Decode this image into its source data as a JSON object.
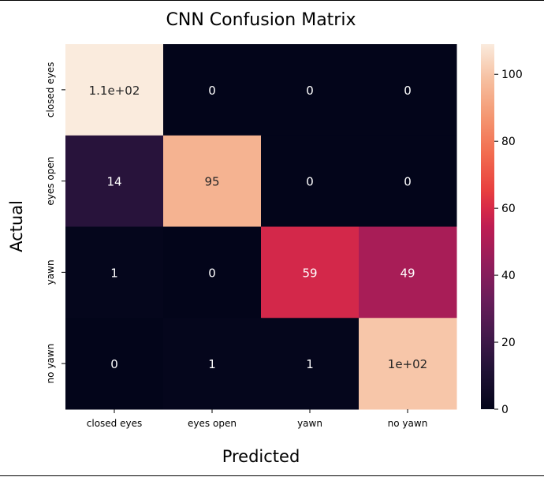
{
  "chart_data": {
    "type": "heatmap",
    "title": "CNN Confusion Matrix",
    "xlabel": "Predicted",
    "ylabel": "Actual",
    "x_categories": [
      "closed eyes",
      "eyes open",
      "yawn",
      "no yawn"
    ],
    "y_categories": [
      "closed eyes",
      "eyes open",
      "yawn",
      "no yawn"
    ],
    "values": [
      [
        109,
        0,
        0,
        0
      ],
      [
        14,
        95,
        0,
        0
      ],
      [
        1,
        0,
        59,
        49
      ],
      [
        0,
        1,
        1,
        100
      ]
    ],
    "annotations": [
      [
        "1.1e+02",
        "0",
        "0",
        "0"
      ],
      [
        "14",
        "95",
        "0",
        "0"
      ],
      [
        "1",
        "0",
        "59",
        "49"
      ],
      [
        "0",
        "1",
        "1",
        "1e+02"
      ]
    ],
    "colorbar": {
      "range": [
        0,
        109
      ],
      "ticks": [
        0,
        20,
        40,
        60,
        80,
        100
      ],
      "tick_labels": [
        "0",
        "20",
        "40",
        "60",
        "80",
        "100"
      ],
      "colormap": "rocket"
    }
  }
}
